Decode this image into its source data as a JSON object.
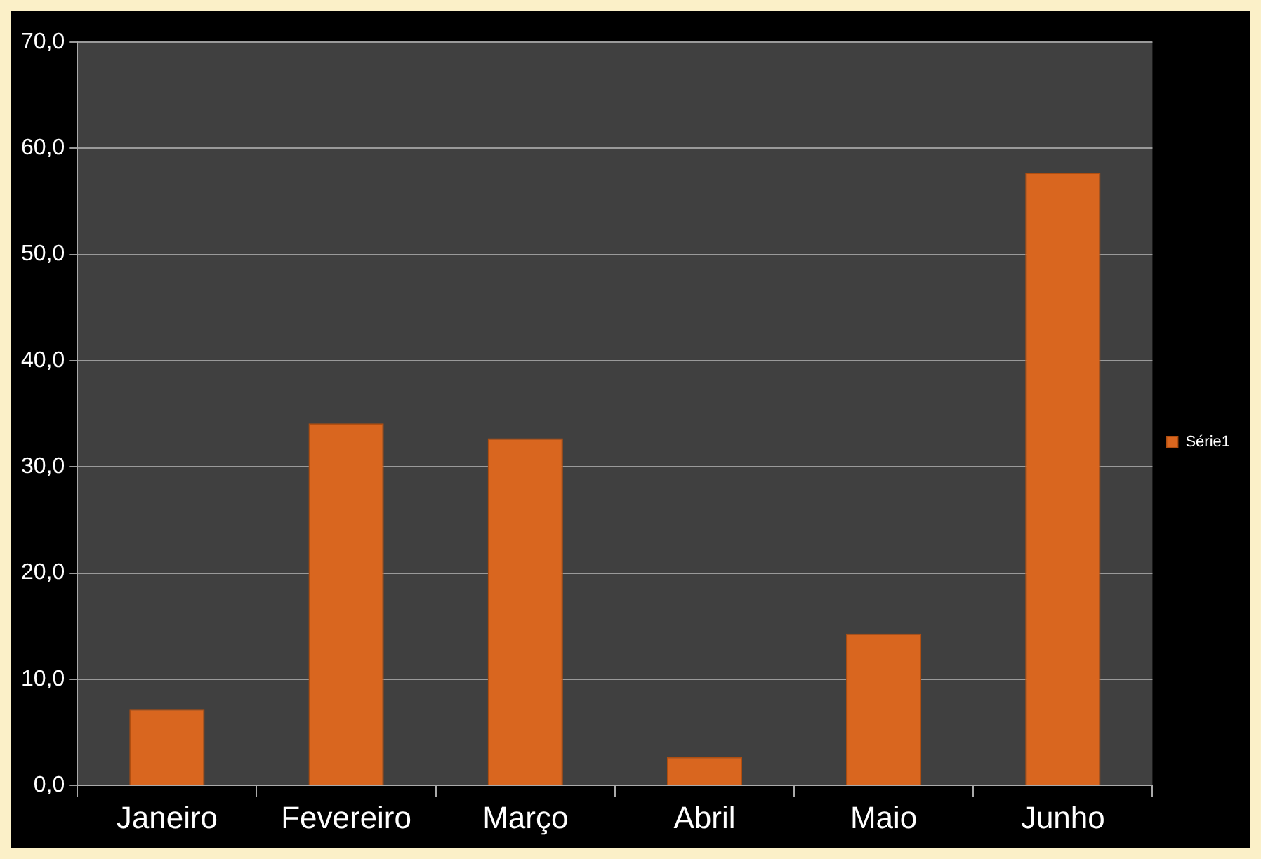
{
  "chart_data": {
    "type": "bar",
    "categories": [
      "Janeiro",
      "Fevereiro",
      "Março",
      "Abril",
      "Maio",
      "Junho"
    ],
    "series": [
      {
        "name": "Série1",
        "color": "#d9661f",
        "values": [
          7.2,
          34.1,
          32.7,
          2.7,
          14.3,
          57.7
        ]
      }
    ],
    "ylim": [
      0,
      70
    ],
    "yticks": [
      {
        "value": 0,
        "label": "0,0"
      },
      {
        "value": 10,
        "label": "10,0"
      },
      {
        "value": 20,
        "label": "20,0"
      },
      {
        "value": 30,
        "label": "30,0"
      },
      {
        "value": 40,
        "label": "40,0"
      },
      {
        "value": 50,
        "label": "50,0"
      },
      {
        "value": 60,
        "label": "60,0"
      },
      {
        "value": 70,
        "label": "70,0"
      }
    ],
    "grid": "y",
    "legend": "right"
  }
}
